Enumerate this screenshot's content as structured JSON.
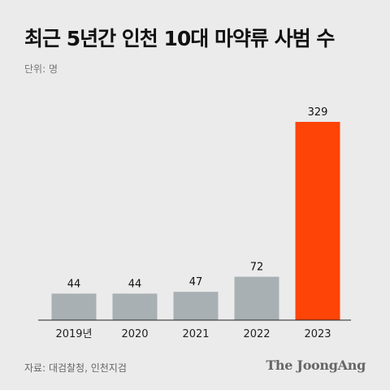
{
  "header": {
    "title": "최근 5년간 인천 10대 마약류 사범 수",
    "unit": "단위: 명"
  },
  "footer": {
    "source": "자료: 대검찰청, 인천지검",
    "brand": "The JoongAng"
  },
  "colors": {
    "bar_default": "#a9b0b4",
    "bar_highlight": "#ff4408",
    "axis": "#222222",
    "background": "#ebebeb"
  },
  "chart_data": {
    "type": "bar",
    "categories": [
      "2019년",
      "2020",
      "2021",
      "2022",
      "2023"
    ],
    "values": [
      44,
      44,
      47,
      72,
      329
    ],
    "highlight_index": 4,
    "ylim": [
      0,
      329
    ],
    "grid": false,
    "xlabel": "",
    "ylabel": ""
  }
}
